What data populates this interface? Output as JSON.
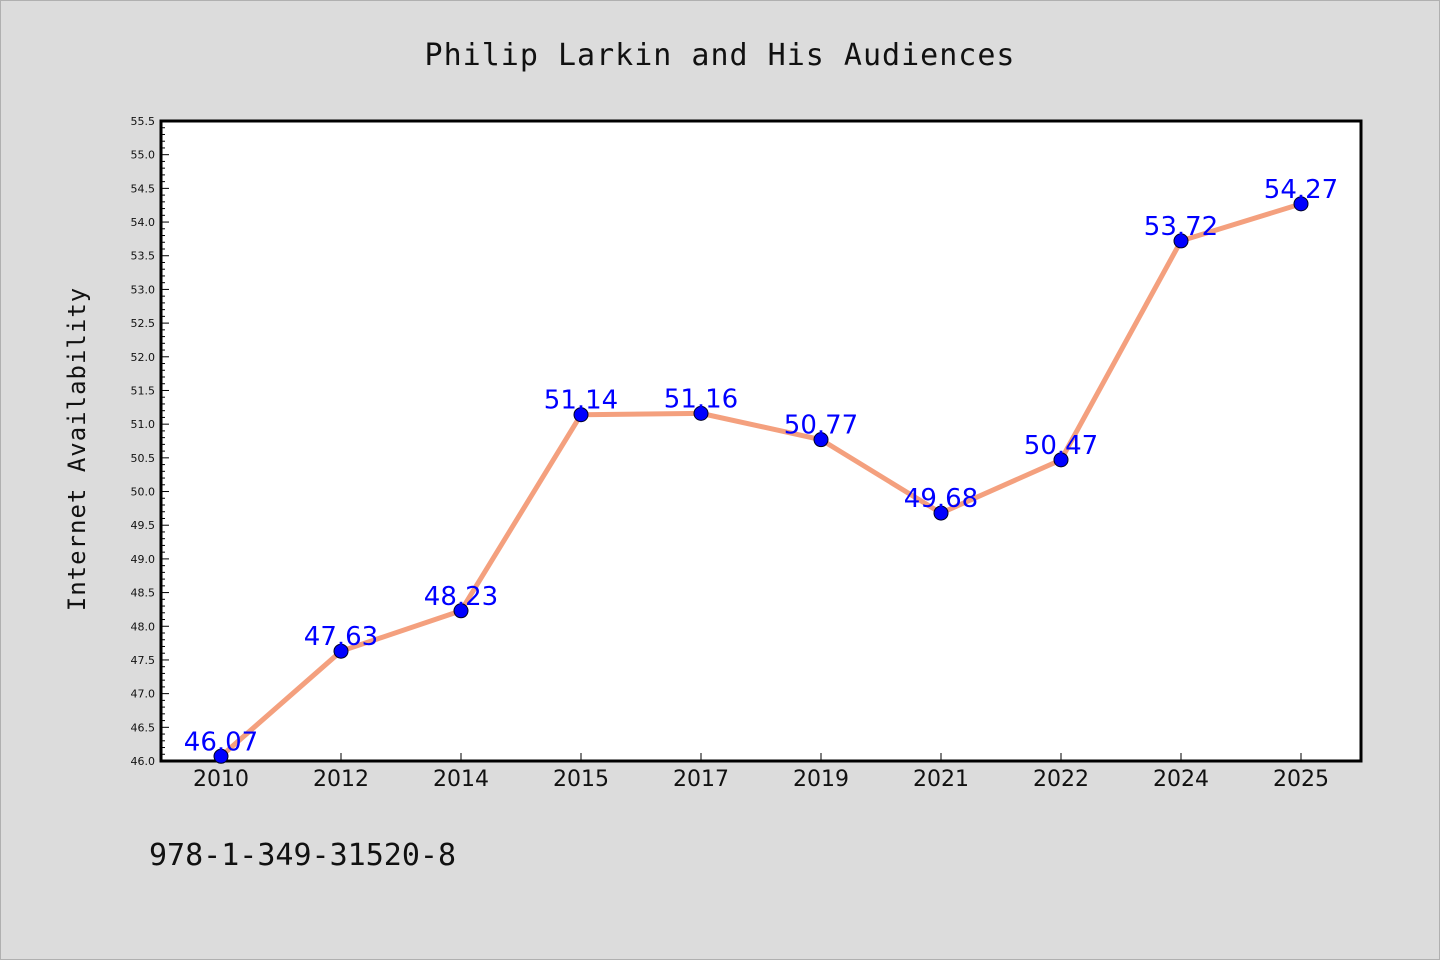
{
  "chart_data": {
    "type": "line",
    "title": "Philip Larkin and His Audiences",
    "xlabel": "",
    "ylabel": "Internet Availability",
    "categories": [
      "2010",
      "2012",
      "2014",
      "2015",
      "2017",
      "2019",
      "2021",
      "2022",
      "2024",
      "2025"
    ],
    "series": [
      {
        "values": [
          46.07,
          47.63,
          48.23,
          51.14,
          51.16,
          50.77,
          49.68,
          50.47,
          53.72,
          54.27
        ],
        "data_labels": [
          "46.07",
          "47.63",
          "48.23",
          "51.14",
          "51.16",
          "50.77",
          "49.68",
          "50.47",
          "53.72",
          "54.27"
        ]
      }
    ],
    "ylim": [
      46.0,
      55.5
    ],
    "yticks": [
      "46.0",
      "46.5",
      "47.0",
      "47.5",
      "48.0",
      "48.5",
      "49.0",
      "49.5",
      "50.0",
      "50.5",
      "51.0",
      "51.5",
      "52.0",
      "52.5",
      "53.0",
      "53.5",
      "54.0",
      "54.5",
      "55.0",
      "55.5"
    ],
    "grid": false,
    "legend": "none",
    "colors": {
      "line": "#f4a07e",
      "marker": "#0000ff",
      "labels": "#0000ff",
      "background": "#dcdcdc",
      "plot_background": "#ffffff"
    }
  },
  "footer": {
    "isbn": "978-1-349-31520-8"
  }
}
